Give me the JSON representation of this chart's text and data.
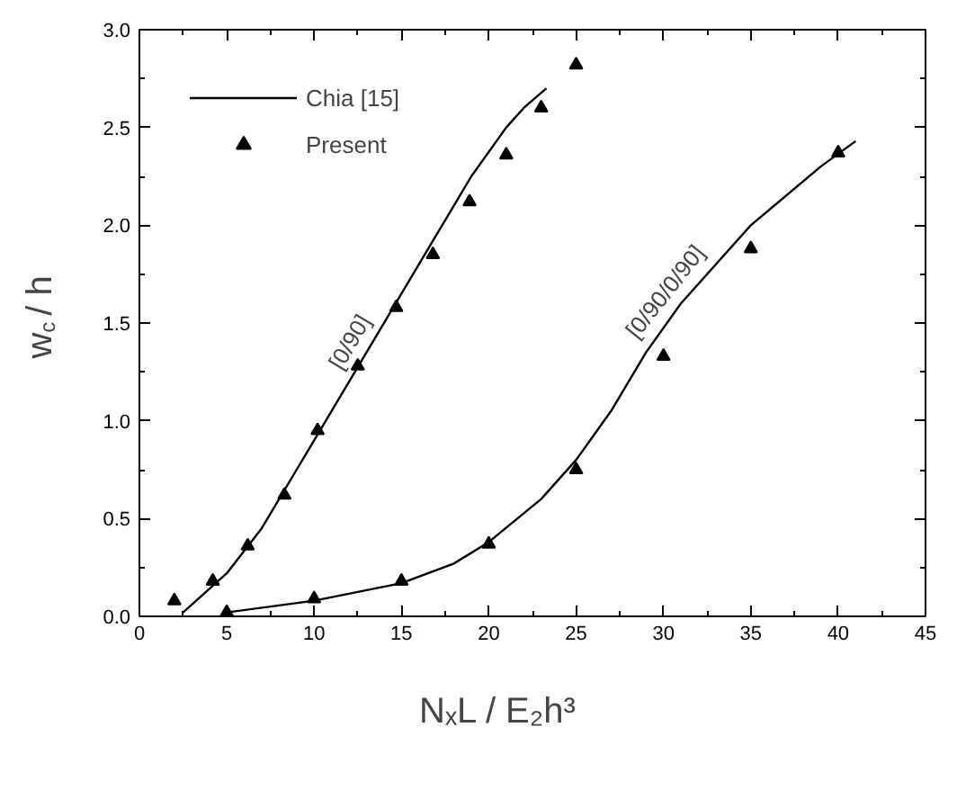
{
  "chart_data": {
    "type": "line",
    "xlabel": "NₓL / E₂h³",
    "ylabel": "w$_{c}$ / h",
    "xlim": [
      0,
      45
    ],
    "ylim": [
      0,
      3.0
    ],
    "xticks": [
      0,
      5,
      10,
      15,
      20,
      25,
      30,
      35,
      40,
      45
    ],
    "yticks": [
      {
        "value": 0,
        "label": "0.0"
      },
      {
        "value": 0.5,
        "label": "0.5"
      },
      {
        "value": 1,
        "label": "1.0"
      },
      {
        "value": 1.5,
        "label": "1.5"
      },
      {
        "value": 2,
        "label": "2.0"
      },
      {
        "value": 2.5,
        "label": "2.5"
      },
      {
        "value": 3,
        "label": "3.0"
      }
    ],
    "grid": false,
    "legend": "top left",
    "series": [
      {
        "name": "Chia [15]",
        "color": "#000000",
        "line_style": "solid",
        "x": [
          2.5,
          5,
          7,
          9,
          11,
          13,
          15,
          17,
          19,
          21,
          22,
          23.3
        ],
        "values": [
          0.02,
          0.22,
          0.45,
          0.75,
          1.05,
          1.35,
          1.65,
          1.95,
          2.25,
          2.5,
          2.6,
          2.7
        ]
      },
      {
        "color": "#000000",
        "line_style": "solid",
        "x": [
          5,
          10,
          15,
          18,
          20,
          23,
          25,
          27,
          29,
          31,
          33,
          35,
          37,
          39,
          41
        ],
        "values": [
          0.02,
          0.08,
          0.17,
          0.27,
          0.38,
          0.6,
          0.8,
          1.05,
          1.35,
          1.6,
          1.8,
          2.0,
          2.15,
          2.3,
          2.43
        ]
      },
      {
        "name": "Present",
        "type": "scatter",
        "marker": "triangle",
        "color": "#000000",
        "x": [
          2,
          4.2,
          6.2,
          8.3,
          10.2,
          12.5,
          14.7,
          16.8,
          18.9,
          21,
          23,
          25
        ],
        "values": [
          0.08,
          0.18,
          0.36,
          0.62,
          0.95,
          1.28,
          1.58,
          1.85,
          2.12,
          2.36,
          2.6,
          2.82
        ]
      },
      {
        "type": "scatter",
        "marker": "triangle",
        "color": "#000000",
        "x": [
          5,
          10,
          15,
          20,
          25,
          30,
          35,
          40
        ],
        "values": [
          0.02,
          0.09,
          0.18,
          0.37,
          0.75,
          1.33,
          1.88,
          2.37
        ]
      }
    ],
    "annotations": [
      "[0/90]",
      "[0/90/0/90]"
    ]
  }
}
